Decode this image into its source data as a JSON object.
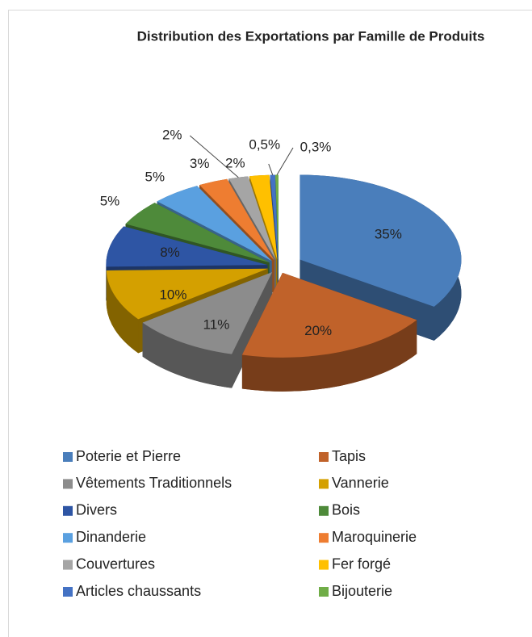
{
  "chart_data": {
    "type": "pie",
    "title": "Distribution des Exportations par Famille de Produits",
    "categories": [
      "Poterie et Pierre",
      "Tapis",
      "Vêtements Traditionnels",
      "Vannerie",
      "Divers",
      "Bois",
      "Dinanderie",
      "Maroquinerie",
      "Couvertures",
      "Fer forgé",
      "Articles chaussants",
      "Bijouterie"
    ],
    "values": [
      35,
      20,
      11,
      10,
      8,
      5,
      5,
      3,
      2,
      2,
      0.5,
      0.3
    ],
    "value_labels": [
      "35%",
      "20%",
      "11%",
      "10%",
      "8%",
      "5%",
      "5%",
      "3%",
      "2%",
      "2%",
      "0,5%",
      "0,3%"
    ],
    "colors": [
      "#4a7ebb",
      "#c0622a",
      "#8c8c8c",
      "#d4a000",
      "#2e55a4",
      "#4e8a3a",
      "#5aa0e0",
      "#ee7d31",
      "#a5a5a5",
      "#ffc000",
      "#4472c4",
      "#70ad47"
    ],
    "legend": "bottom"
  }
}
